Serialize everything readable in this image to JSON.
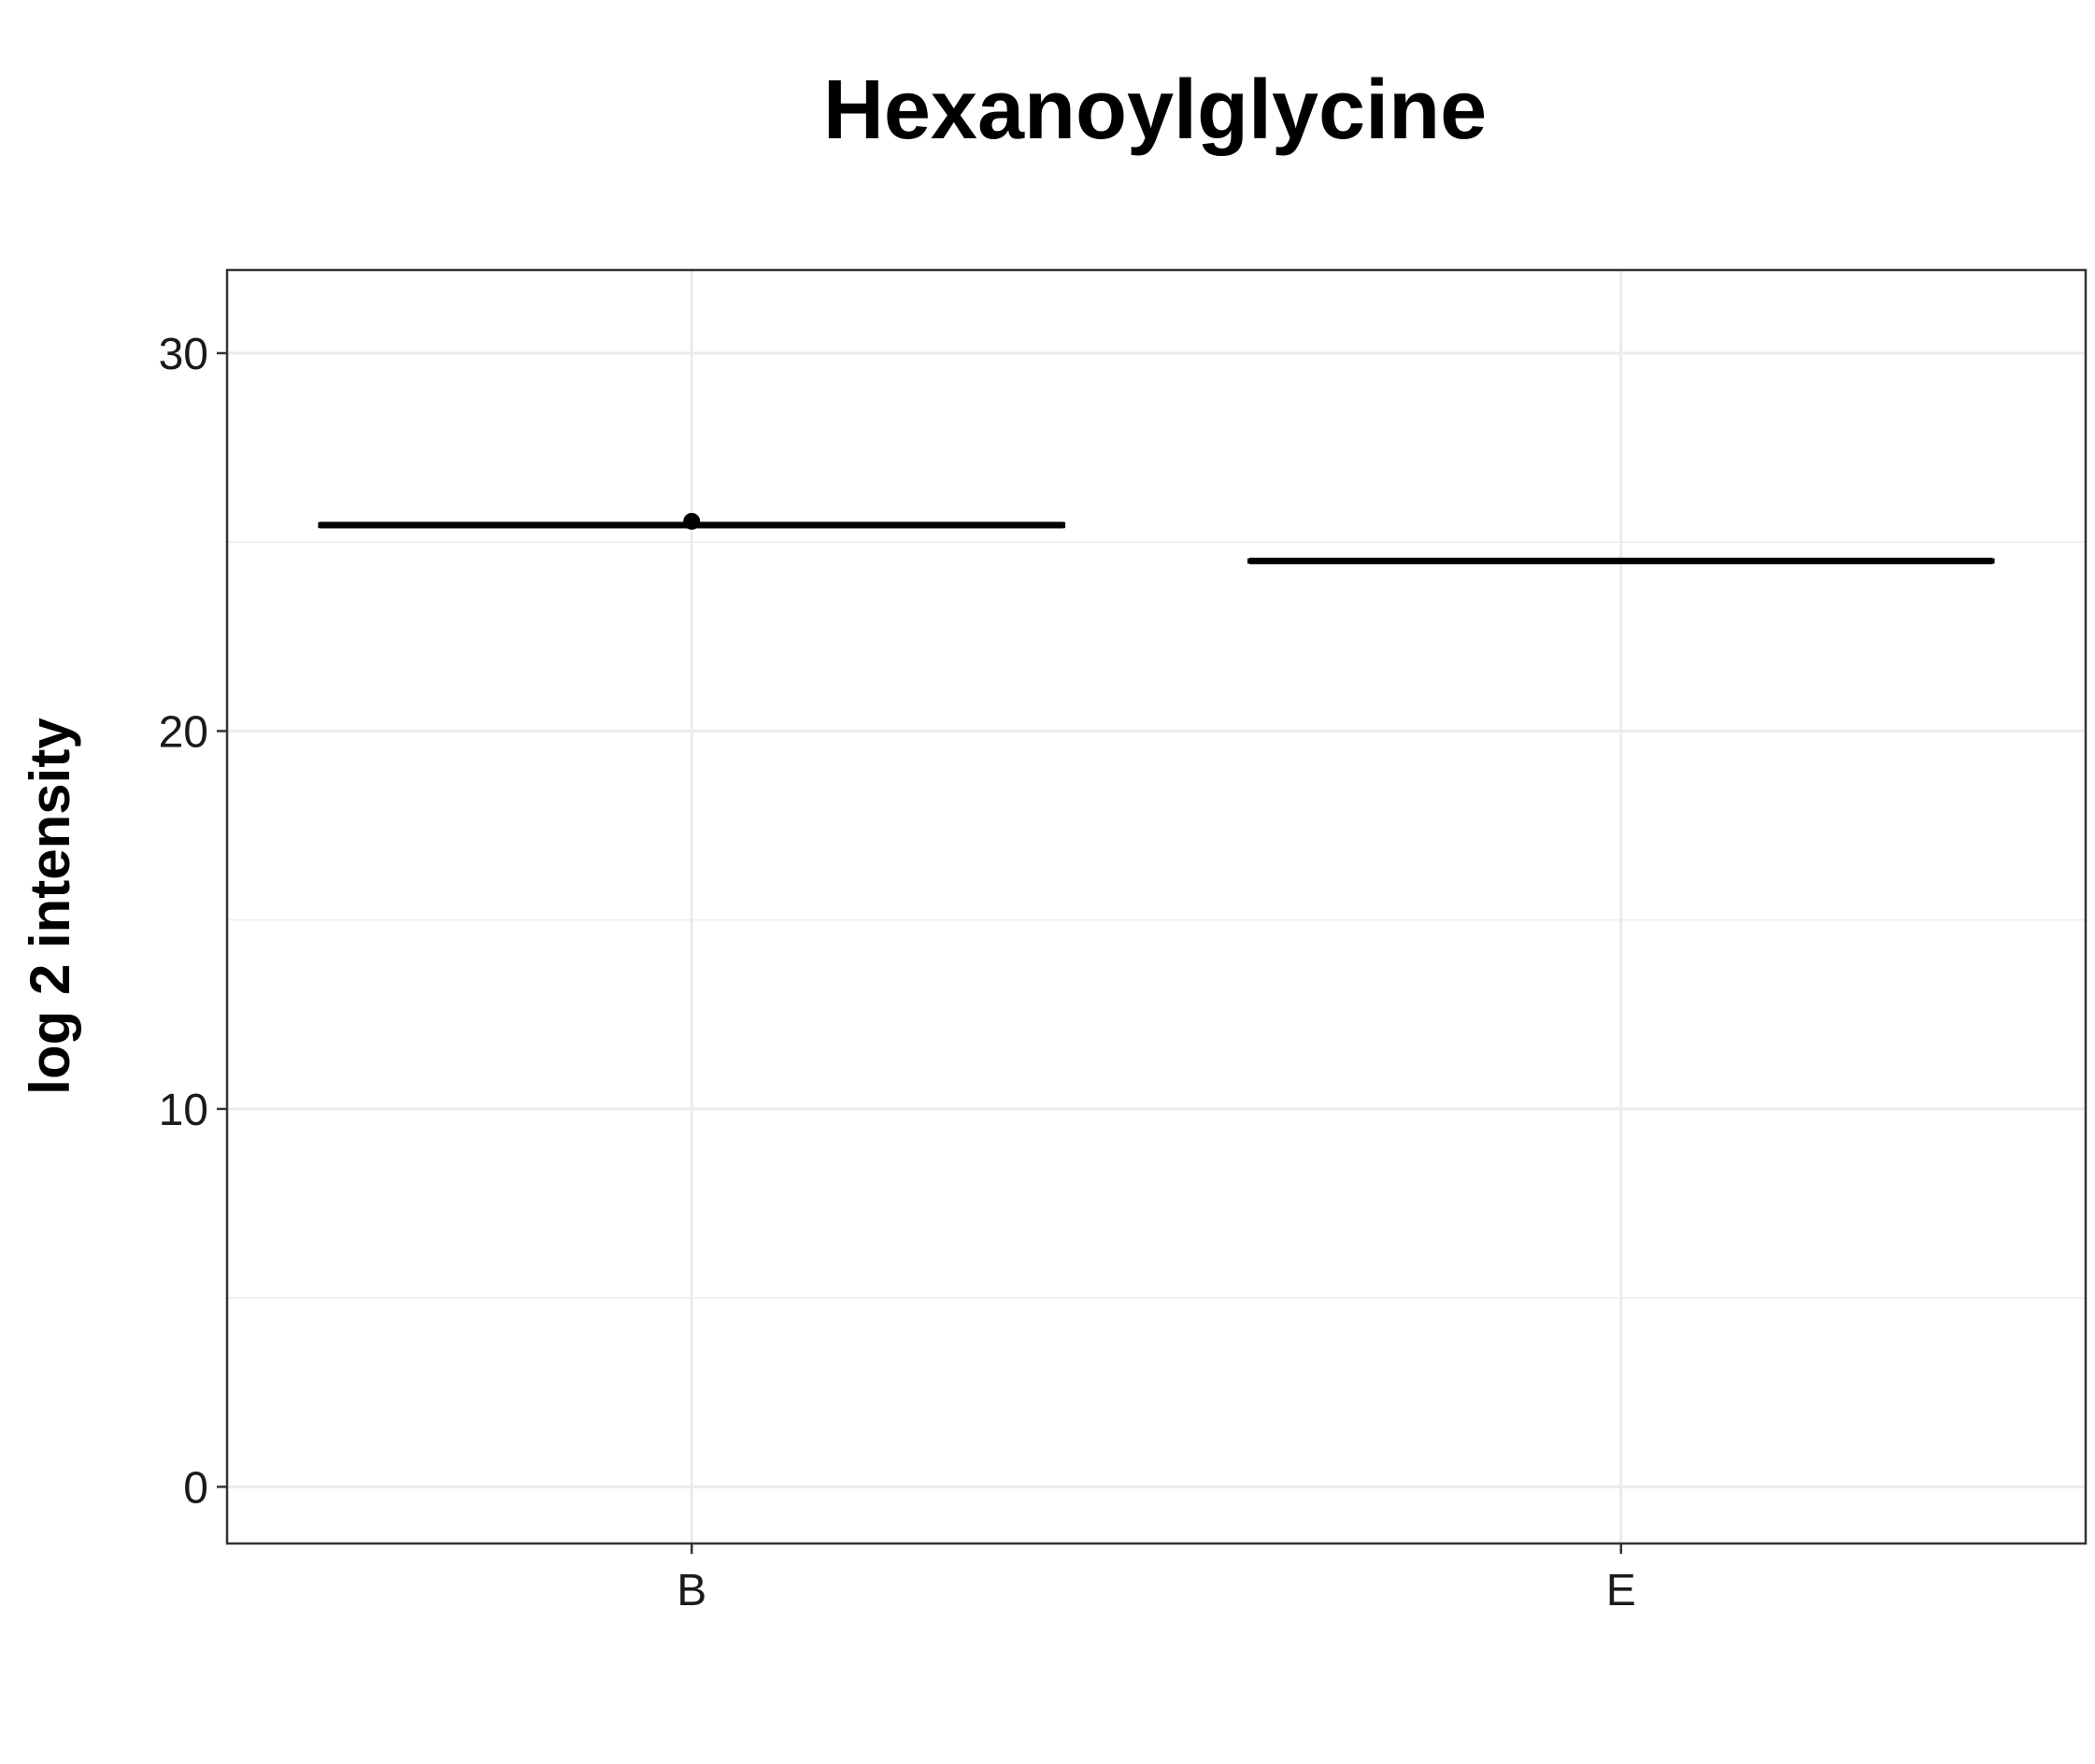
{
  "chart_data": {
    "type": "boxplot",
    "title": "Hexanoylglycine",
    "xlabel": "",
    "ylabel": "log 2 intensity",
    "categories": [
      "B",
      "E"
    ],
    "ylim": [
      -1.5,
      32.2
    ],
    "yticks": [
      0,
      10,
      20,
      30
    ],
    "grid": true,
    "legend": "none",
    "boxes": [
      {
        "category": "B",
        "q1": 25.42,
        "median": 25.45,
        "q3": 25.48,
        "whisker_low": 25.42,
        "whisker_high": 25.48,
        "outliers": [
          25.55
        ]
      },
      {
        "category": "E",
        "q1": 24.48,
        "median": 24.5,
        "q3": 24.52,
        "whisker_low": 24.48,
        "whisker_high": 24.52,
        "outliers": []
      }
    ]
  }
}
